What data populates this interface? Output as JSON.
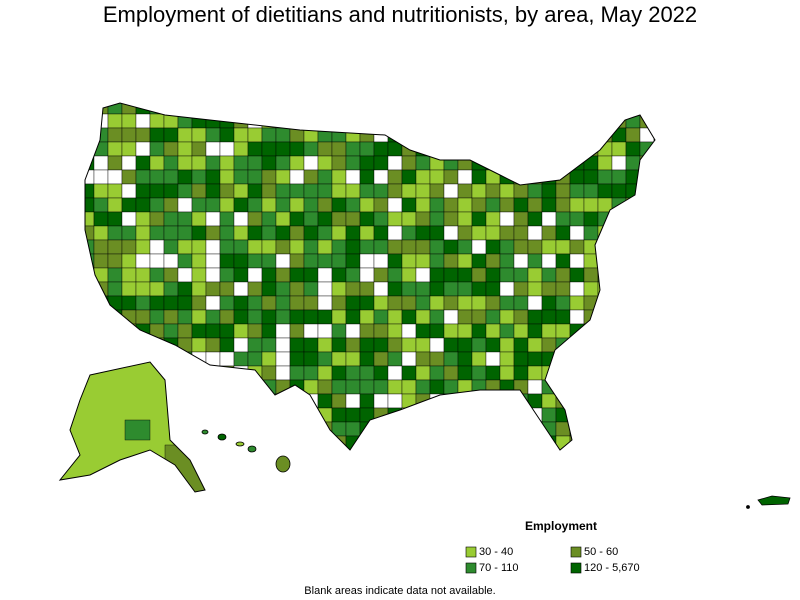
{
  "title": "Employment of dietitians and nutritionists, by area, May 2022",
  "legend": {
    "title": "Employment",
    "items": [
      {
        "label": "30 - 40",
        "color": "#99cc33"
      },
      {
        "label": "50 - 60",
        "color": "#6b8e23"
      },
      {
        "label": "70 - 110",
        "color": "#2e8b2e"
      },
      {
        "label": "120 - 5,670",
        "color": "#006400"
      }
    ]
  },
  "note": "Blank areas indicate data not available."
}
